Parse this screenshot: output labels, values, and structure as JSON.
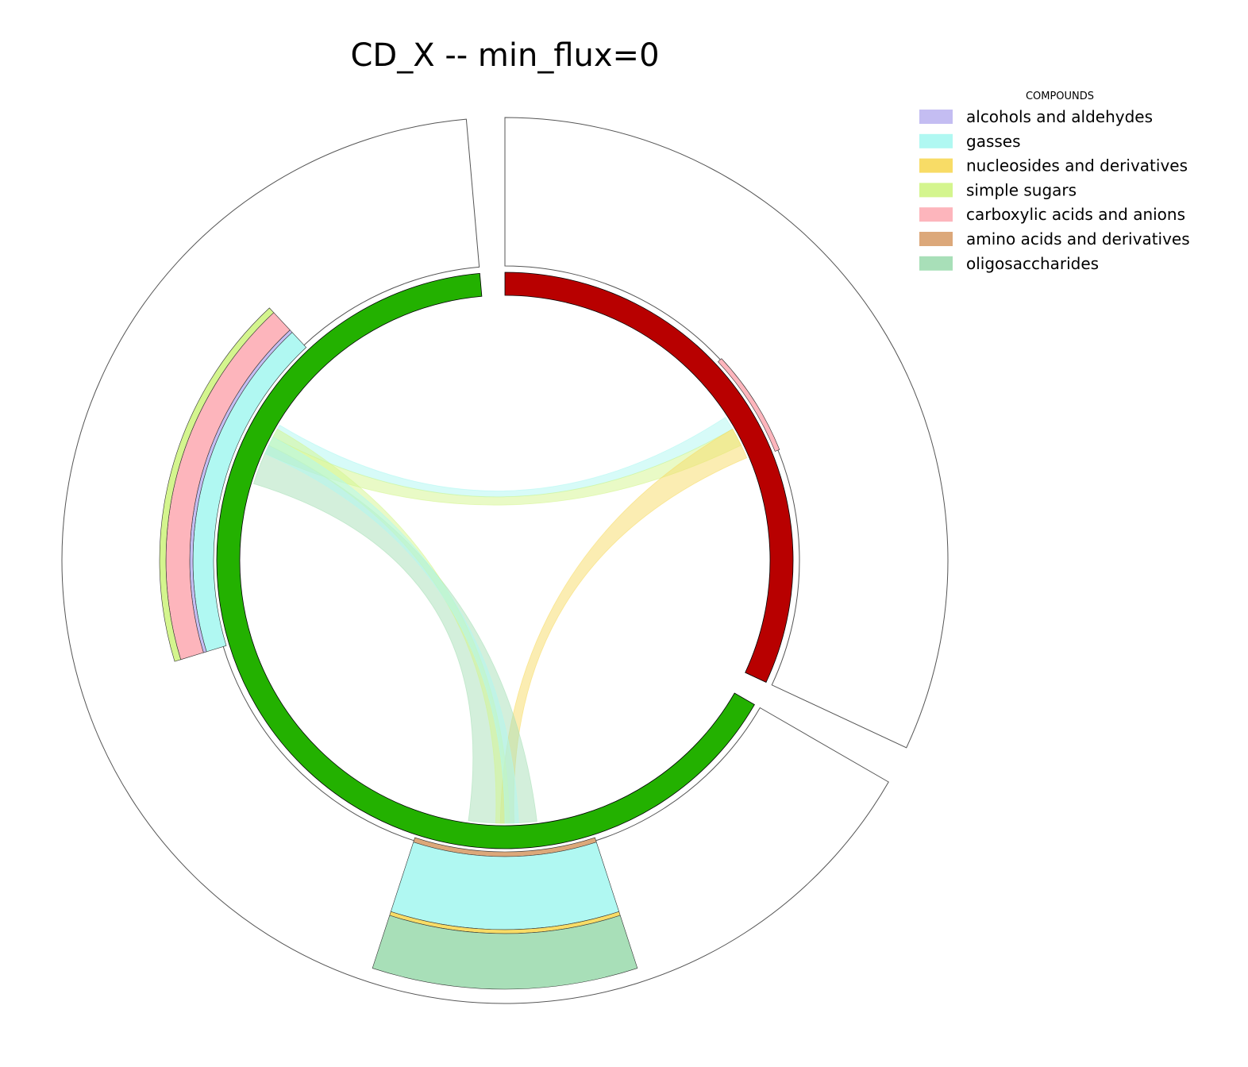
{
  "chart_data": {
    "type": "chord",
    "title": "CD_X -- min_flux=0",
    "legend": {
      "title": "COMPOUNDS",
      "placement": "top-right",
      "entries": [
        {
          "name": "alcohols and aldehydes",
          "color": "#c4bdf2"
        },
        {
          "name": "gasses",
          "color": "#b0f8f2"
        },
        {
          "name": "nucleosides and derivatives",
          "color": "#f8dc66"
        },
        {
          "name": "simple sugars",
          "color": "#d4f58e"
        },
        {
          "name": "carboxylic acids and anions",
          "color": "#fdb5bc"
        },
        {
          "name": "amino acids and derivatives",
          "color": "#dca87a"
        },
        {
          "name": "oligosaccharides",
          "color": "#a8dfb8"
        }
      ]
    },
    "nodes": [
      {
        "id": "node_red",
        "color": "#b80000",
        "start_deg": 0,
        "end_deg": 115
      },
      {
        "id": "node_green",
        "color": "#23b100",
        "start_deg": 120,
        "end_deg": 355
      }
    ],
    "outer_stacks": [
      {
        "start_deg": 109,
        "end_deg": 119,
        "layers": []
      },
      {
        "start_deg": 47,
        "end_deg": 68,
        "layers": [
          {
            "compound": "carboxylic acids and anions",
            "thickness": 6
          }
        ]
      },
      {
        "start_deg": 162,
        "end_deg": 198,
        "layers": [
          {
            "compound": "amino acids and derivatives",
            "thickness": 6
          },
          {
            "compound": "gasses",
            "thickness": 92
          },
          {
            "compound": "nucleosides and derivatives",
            "thickness": 5
          },
          {
            "compound": "oligosaccharides",
            "thickness": 70
          }
        ]
      },
      {
        "start_deg": 253,
        "end_deg": 317,
        "layers": [
          {
            "compound": "gasses",
            "thickness": 26
          },
          {
            "compound": "alcohols and aldehydes",
            "thickness": 4
          },
          {
            "compound": "carboxylic acids and anions",
            "thickness": 30
          },
          {
            "compound": "simple sugars",
            "thickness": 8
          }
        ]
      }
    ],
    "chords": [
      {
        "compound": "gasses",
        "from": [
          57,
          60
        ],
        "to": [
          298,
          301
        ]
      },
      {
        "compound": "simple sugars",
        "from": [
          60,
          64
        ],
        "to": [
          294,
          298
        ]
      },
      {
        "compound": "nucleosides and derivatives",
        "from": [
          60,
          67
        ],
        "to": [
          178,
          181
        ]
      },
      {
        "compound": "oligosaccharides",
        "from": [
          287,
          296
        ],
        "to": [
          173,
          188
        ]
      },
      {
        "compound": "simple sugars",
        "from": [
          296,
          300
        ],
        "to": [
          179,
          182
        ]
      },
      {
        "compound": "gasses",
        "from": [
          294,
          298
        ],
        "to": [
          177,
          180
        ]
      }
    ]
  }
}
